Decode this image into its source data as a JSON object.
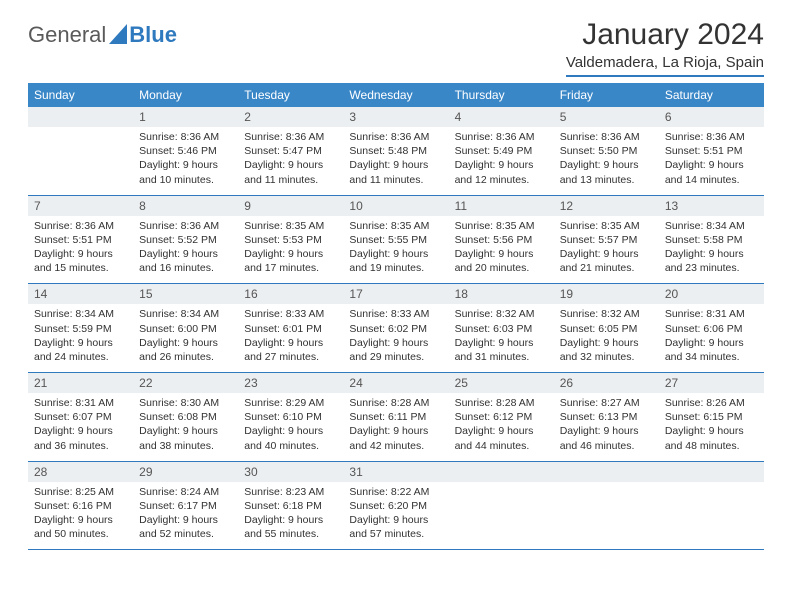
{
  "brand": {
    "part1": "General",
    "part2": "Blue"
  },
  "title": "January 2024",
  "location": "Valdemadera, La Rioja, Spain",
  "colors": {
    "accent": "#2f7abf",
    "header_bg": "#3a87c8",
    "daynum_bg": "#eceff1",
    "text": "#333333",
    "logo_gray": "#5a5a5a"
  },
  "weekdays": [
    "Sunday",
    "Monday",
    "Tuesday",
    "Wednesday",
    "Thursday",
    "Friday",
    "Saturday"
  ],
  "weeks": [
    [
      null,
      {
        "n": "1",
        "sr": "8:36 AM",
        "ss": "5:46 PM",
        "dl": "9 hours and 10 minutes."
      },
      {
        "n": "2",
        "sr": "8:36 AM",
        "ss": "5:47 PM",
        "dl": "9 hours and 11 minutes."
      },
      {
        "n": "3",
        "sr": "8:36 AM",
        "ss": "5:48 PM",
        "dl": "9 hours and 11 minutes."
      },
      {
        "n": "4",
        "sr": "8:36 AM",
        "ss": "5:49 PM",
        "dl": "9 hours and 12 minutes."
      },
      {
        "n": "5",
        "sr": "8:36 AM",
        "ss": "5:50 PM",
        "dl": "9 hours and 13 minutes."
      },
      {
        "n": "6",
        "sr": "8:36 AM",
        "ss": "5:51 PM",
        "dl": "9 hours and 14 minutes."
      }
    ],
    [
      {
        "n": "7",
        "sr": "8:36 AM",
        "ss": "5:51 PM",
        "dl": "9 hours and 15 minutes."
      },
      {
        "n": "8",
        "sr": "8:36 AM",
        "ss": "5:52 PM",
        "dl": "9 hours and 16 minutes."
      },
      {
        "n": "9",
        "sr": "8:35 AM",
        "ss": "5:53 PM",
        "dl": "9 hours and 17 minutes."
      },
      {
        "n": "10",
        "sr": "8:35 AM",
        "ss": "5:55 PM",
        "dl": "9 hours and 19 minutes."
      },
      {
        "n": "11",
        "sr": "8:35 AM",
        "ss": "5:56 PM",
        "dl": "9 hours and 20 minutes."
      },
      {
        "n": "12",
        "sr": "8:35 AM",
        "ss": "5:57 PM",
        "dl": "9 hours and 21 minutes."
      },
      {
        "n": "13",
        "sr": "8:34 AM",
        "ss": "5:58 PM",
        "dl": "9 hours and 23 minutes."
      }
    ],
    [
      {
        "n": "14",
        "sr": "8:34 AM",
        "ss": "5:59 PM",
        "dl": "9 hours and 24 minutes."
      },
      {
        "n": "15",
        "sr": "8:34 AM",
        "ss": "6:00 PM",
        "dl": "9 hours and 26 minutes."
      },
      {
        "n": "16",
        "sr": "8:33 AM",
        "ss": "6:01 PM",
        "dl": "9 hours and 27 minutes."
      },
      {
        "n": "17",
        "sr": "8:33 AM",
        "ss": "6:02 PM",
        "dl": "9 hours and 29 minutes."
      },
      {
        "n": "18",
        "sr": "8:32 AM",
        "ss": "6:03 PM",
        "dl": "9 hours and 31 minutes."
      },
      {
        "n": "19",
        "sr": "8:32 AM",
        "ss": "6:05 PM",
        "dl": "9 hours and 32 minutes."
      },
      {
        "n": "20",
        "sr": "8:31 AM",
        "ss": "6:06 PM",
        "dl": "9 hours and 34 minutes."
      }
    ],
    [
      {
        "n": "21",
        "sr": "8:31 AM",
        "ss": "6:07 PM",
        "dl": "9 hours and 36 minutes."
      },
      {
        "n": "22",
        "sr": "8:30 AM",
        "ss": "6:08 PM",
        "dl": "9 hours and 38 minutes."
      },
      {
        "n": "23",
        "sr": "8:29 AM",
        "ss": "6:10 PM",
        "dl": "9 hours and 40 minutes."
      },
      {
        "n": "24",
        "sr": "8:28 AM",
        "ss": "6:11 PM",
        "dl": "9 hours and 42 minutes."
      },
      {
        "n": "25",
        "sr": "8:28 AM",
        "ss": "6:12 PM",
        "dl": "9 hours and 44 minutes."
      },
      {
        "n": "26",
        "sr": "8:27 AM",
        "ss": "6:13 PM",
        "dl": "9 hours and 46 minutes."
      },
      {
        "n": "27",
        "sr": "8:26 AM",
        "ss": "6:15 PM",
        "dl": "9 hours and 48 minutes."
      }
    ],
    [
      {
        "n": "28",
        "sr": "8:25 AM",
        "ss": "6:16 PM",
        "dl": "9 hours and 50 minutes."
      },
      {
        "n": "29",
        "sr": "8:24 AM",
        "ss": "6:17 PM",
        "dl": "9 hours and 52 minutes."
      },
      {
        "n": "30",
        "sr": "8:23 AM",
        "ss": "6:18 PM",
        "dl": "9 hours and 55 minutes."
      },
      {
        "n": "31",
        "sr": "8:22 AM",
        "ss": "6:20 PM",
        "dl": "9 hours and 57 minutes."
      },
      null,
      null,
      null
    ]
  ],
  "labels": {
    "sunrise": "Sunrise:",
    "sunset": "Sunset:",
    "daylight": "Daylight:"
  }
}
